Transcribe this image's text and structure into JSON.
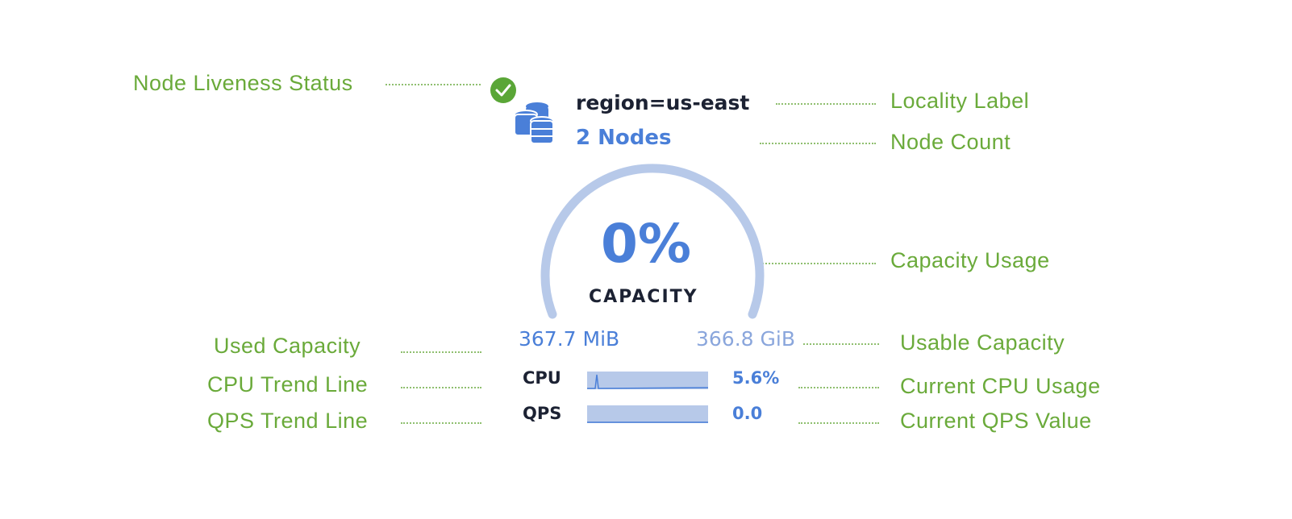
{
  "annotations": {
    "liveness": "Node Liveness Status",
    "locality": "Locality Label",
    "node_count": "Node Count",
    "capacity_usage": "Capacity Usage",
    "used_capacity": "Used Capacity",
    "usable_capacity": "Usable Capacity",
    "cpu_trend": "CPU Trend Line",
    "current_cpu": "Current CPU Usage",
    "qps_trend": "QPS Trend Line",
    "current_qps": "Current QPS Value"
  },
  "card": {
    "status": "live",
    "status_icon": "check-circle-icon",
    "locality": "region=us-east",
    "node_count": "2 Nodes",
    "capacity_percent": "0%",
    "capacity_label": "CAPACITY",
    "used": "367.7 MiB",
    "usable": "366.8 GiB",
    "cpu_label": "CPU",
    "cpu_value": "5.6%",
    "qps_label": "QPS",
    "qps_value": "0.0"
  },
  "colors": {
    "accent": "#4a7fd8",
    "annotation": "#6aaa3a",
    "live": "#5aa637",
    "gauge": "#b7c9e9"
  }
}
